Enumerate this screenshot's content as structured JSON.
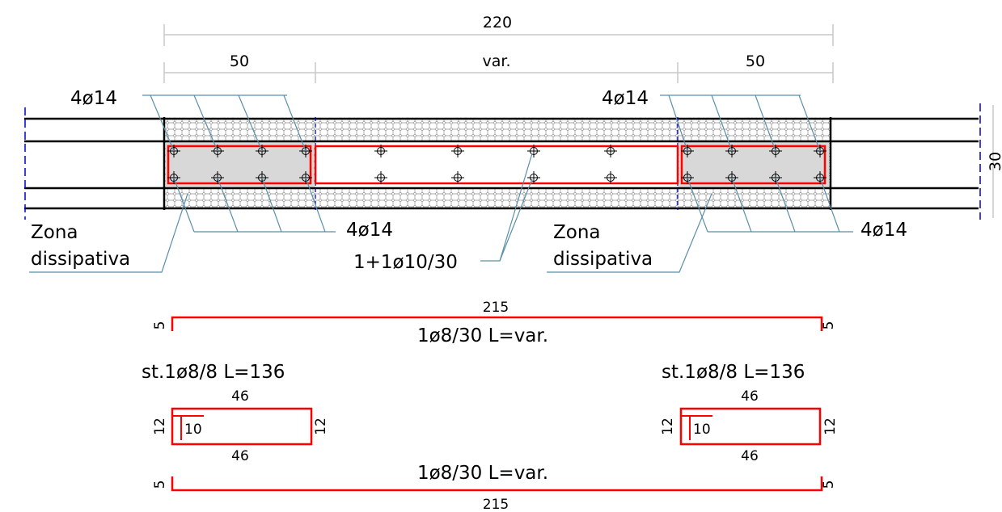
{
  "dimensions": {
    "total_width": "220",
    "left_zone": "50",
    "middle_zone": "var.",
    "right_zone": "50",
    "section_height": "30"
  },
  "labels": {
    "top_left_bars": "4ø14",
    "top_right_bars": "4ø14",
    "bottom_left_bars": "4ø14",
    "bottom_right_bars": "4ø14",
    "zone_left_line1": "Zona",
    "zone_left_line2": "dissipativa",
    "zone_right_line1": "Zona",
    "zone_right_line2": "dissipativa",
    "stirrups_main": "1+1ø10/30"
  },
  "bar_schedule": {
    "top_bar": {
      "length_label": "215",
      "hook_left": "5",
      "hook_right": "5",
      "spec": "1ø8/30 L=var."
    },
    "bottom_bar": {
      "length_label": "215",
      "hook_left": "5",
      "hook_right": "5",
      "spec": "1ø8/30 L=var."
    },
    "stirrup_left": {
      "spec": "st.1ø8/8 L=136",
      "top": "46",
      "bottom": "46",
      "left": "12",
      "right": "12",
      "hook": "10"
    },
    "stirrup_right": {
      "spec": "st.1ø8/8 L=136",
      "top": "46",
      "bottom": "46",
      "left": "12",
      "right": "12",
      "hook": "10"
    }
  },
  "colors": {
    "rebar": "#ff0000",
    "dim_line": "#c8c8c8",
    "leader": "#5a8fa8",
    "axis": "#0000cc",
    "zone_fill": "#d8d8d8"
  }
}
